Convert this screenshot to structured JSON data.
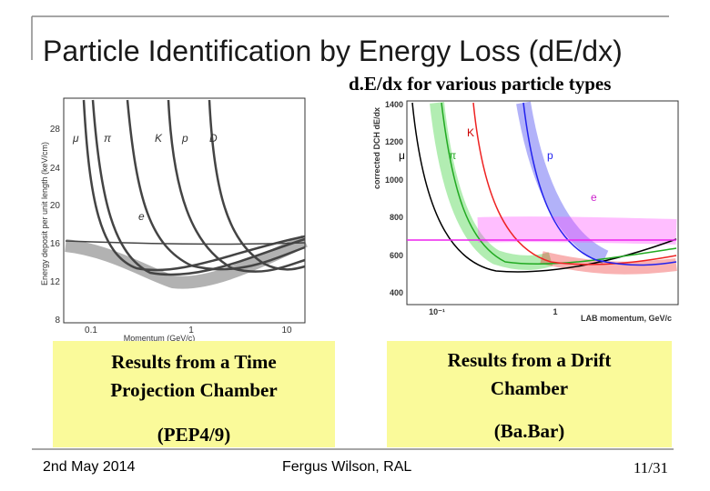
{
  "slide": {
    "title": "Particle Identification by Energy Loss (dE/dx)",
    "subtitle": "d.E/dx for various particle types",
    "left_figure": {
      "y_label": "Energy deposit per unit length (keV/cm)",
      "x_label": "Momentum (GeV/c)",
      "y_ticks": [
        "8",
        "12",
        "16",
        "20",
        "24",
        "28"
      ],
      "x_ticks": [
        "0.1",
        "1",
        "10"
      ],
      "particle_labels": [
        "μ",
        "π",
        "K",
        "p",
        "D",
        "e"
      ]
    },
    "right_figure": {
      "y_label": "corrected DCH dE/dx",
      "x_label": "LAB momentum, GeV/c",
      "y_ticks": [
        "400",
        "600",
        "800",
        "1000",
        "1200",
        "1400"
      ],
      "x_ticks": [
        "10⁻¹",
        "1"
      ],
      "particle_labels": [
        "K",
        "μ",
        "π",
        "p",
        "e"
      ]
    },
    "captions": {
      "left": [
        "Results from a Time Projection Chamber",
        "(PEP4/9)"
      ],
      "right": [
        "Results from a Drift Chamber",
        "(Ba.Bar)"
      ]
    },
    "footer": {
      "date": "2nd May 2014",
      "author": "Fergus Wilson, RAL",
      "page": "11/31"
    }
  }
}
